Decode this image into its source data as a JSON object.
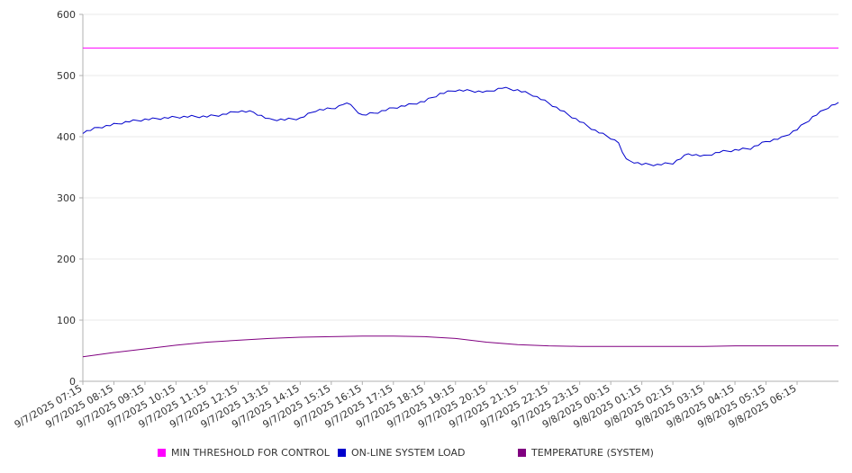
{
  "colors": {
    "threshold": "#ff00ff",
    "load": "#0000cc",
    "temperature": "#800080",
    "grid": "#e8e8e8",
    "axis": "#b0b0b0"
  },
  "legend": {
    "threshold": "MIN THRESHOLD FOR CONTROL",
    "load": "ON-LINE SYSTEM LOAD",
    "temperature": "TEMPERATURE (SYSTEM)"
  },
  "chart_data": {
    "type": "line",
    "title": "",
    "xlabel": "",
    "ylabel": "",
    "ylim": [
      0,
      600
    ],
    "yticks": [
      0,
      100,
      200,
      300,
      400,
      500,
      600
    ],
    "grid": true,
    "legend_position": "bottom",
    "xlim": [
      "9/7/2025 07:15",
      "9/8/2025 07:35"
    ],
    "xtick_labels": [
      "9/7/2025 07:15",
      "9/7/2025 08:15",
      "9/7/2025 09:15",
      "9/7/2025 10:15",
      "9/7/2025 11:15",
      "9/7/2025 12:15",
      "9/7/2025 13:15",
      "9/7/2025 14:15",
      "9/7/2025 15:15",
      "9/7/2025 16:15",
      "9/7/2025 17:15",
      "9/7/2025 18:15",
      "9/7/2025 19:15",
      "9/7/2025 20:15",
      "9/7/2025 21:15",
      "9/7/2025 22:15",
      "9/7/2025 23:15",
      "9/8/2025 00:15",
      "9/8/2025 01:15",
      "9/8/2025 02:15",
      "9/8/2025 03:15",
      "9/8/2025 04:15",
      "9/8/2025 05:15",
      "9/8/2025 06:15"
    ],
    "series": [
      {
        "name": "MIN THRESHOLD FOR CONTROL",
        "x": [
          "9/7/2025 07:15",
          "9/8/2025 07:35"
        ],
        "y": [
          545,
          545
        ]
      },
      {
        "name": "ON-LINE SYSTEM LOAD",
        "x": [
          "9/7/2025 07:15",
          "9/7/2025 07:45",
          "9/7/2025 08:15",
          "9/7/2025 08:45",
          "9/7/2025 09:15",
          "9/7/2025 09:45",
          "9/7/2025 10:15",
          "9/7/2025 10:45",
          "9/7/2025 11:15",
          "9/7/2025 11:45",
          "9/7/2025 12:15",
          "9/7/2025 12:45",
          "9/7/2025 13:15",
          "9/7/2025 13:45",
          "9/7/2025 14:15",
          "9/7/2025 14:45",
          "9/7/2025 15:15",
          "9/7/2025 15:30",
          "9/7/2025 15:45",
          "9/7/2025 16:15",
          "9/7/2025 16:45",
          "9/7/2025 17:15",
          "9/7/2025 17:45",
          "9/7/2025 18:15",
          "9/7/2025 18:45",
          "9/7/2025 19:15",
          "9/7/2025 19:45",
          "9/7/2025 20:15",
          "9/7/2025 20:45",
          "9/7/2025 21:15",
          "9/7/2025 21:45",
          "9/7/2025 22:15",
          "9/7/2025 22:45",
          "9/7/2025 23:15",
          "9/7/2025 23:45",
          "9/8/2025 00:15",
          "9/8/2025 00:30",
          "9/8/2025 00:45",
          "9/8/2025 01:15",
          "9/8/2025 01:45",
          "9/8/2025 02:15",
          "9/8/2025 02:45",
          "9/8/2025 03:15",
          "9/8/2025 03:45",
          "9/8/2025 04:15",
          "9/8/2025 04:45",
          "9/8/2025 05:15",
          "9/8/2025 05:45",
          "9/8/2025 06:15",
          "9/8/2025 06:45",
          "9/8/2025 07:15",
          "9/8/2025 07:35"
        ],
        "y": [
          407,
          415,
          420,
          425,
          428,
          430,
          432,
          433,
          433,
          436,
          442,
          440,
          428,
          428,
          430,
          443,
          446,
          449,
          456,
          435,
          440,
          447,
          452,
          458,
          470,
          476,
          475,
          473,
          480,
          476,
          468,
          455,
          440,
          425,
          410,
          398,
          390,
          362,
          355,
          354,
          357,
          372,
          368,
          375,
          378,
          381,
          392,
          398,
          412,
          432,
          448,
          456
        ]
      },
      {
        "name": "TEMPERATURE (SYSTEM)",
        "x": [
          "9/7/2025 07:15",
          "9/7/2025 08:15",
          "9/7/2025 09:15",
          "9/7/2025 10:15",
          "9/7/2025 11:15",
          "9/7/2025 12:15",
          "9/7/2025 13:15",
          "9/7/2025 14:15",
          "9/7/2025 15:15",
          "9/7/2025 16:15",
          "9/7/2025 17:15",
          "9/7/2025 18:15",
          "9/7/2025 19:15",
          "9/7/2025 20:15",
          "9/7/2025 21:15",
          "9/7/2025 22:15",
          "9/7/2025 23:15",
          "9/8/2025 00:15",
          "9/8/2025 01:15",
          "9/8/2025 02:15",
          "9/8/2025 03:15",
          "9/8/2025 04:15",
          "9/8/2025 05:15",
          "9/8/2025 06:15",
          "9/8/2025 07:35"
        ],
        "y": [
          40,
          47,
          53,
          59,
          64,
          67,
          70,
          72,
          73,
          74,
          74,
          73,
          70,
          64,
          60,
          58,
          57,
          57,
          57,
          57,
          57,
          58,
          58,
          58,
          58
        ]
      }
    ]
  }
}
